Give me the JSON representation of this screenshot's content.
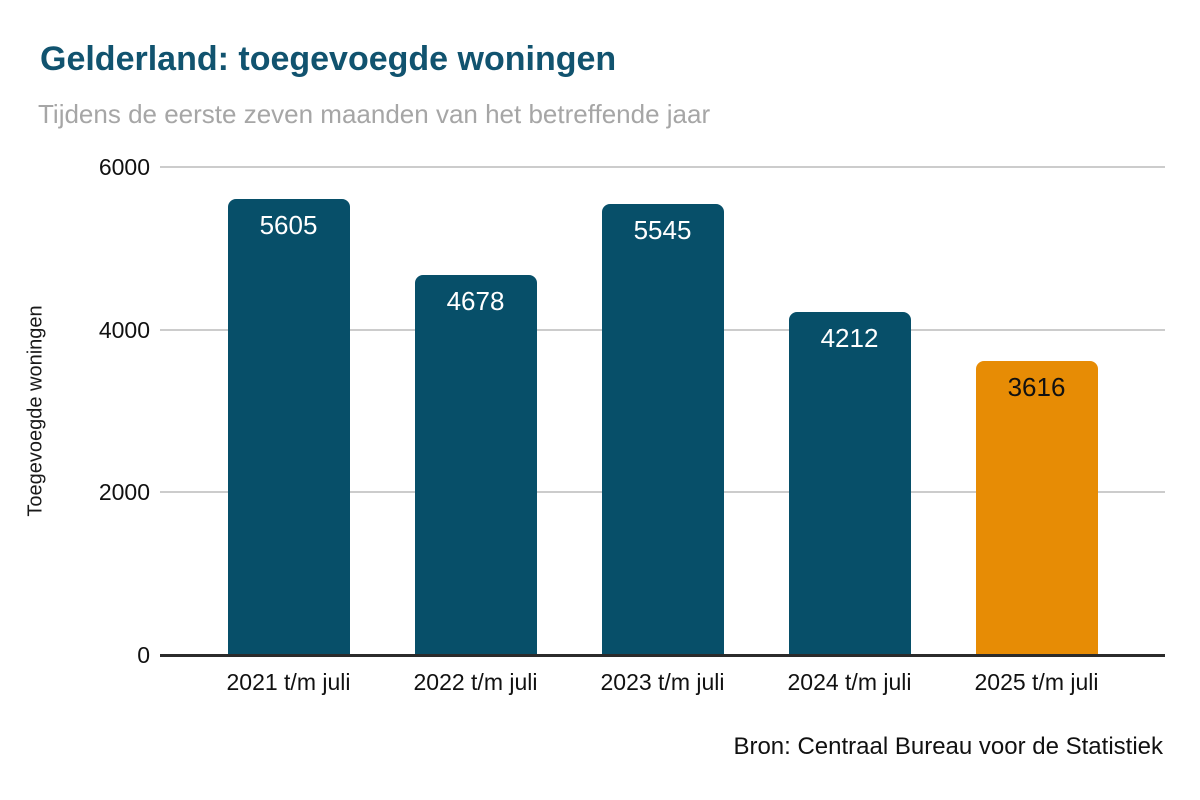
{
  "header": {
    "title": "Gelderland: toegevoegde woningen",
    "subtitle": "Tijdens de eerste zeven maanden van het betreffende jaar"
  },
  "source": "Bron: Centraal Bureau voor de Statistiek",
  "colors": {
    "title": "#11536f",
    "subtitle": "#a6a6a6",
    "bar_teal": "#074f69",
    "bar_orange": "#e78c05",
    "gridline": "#cccccc",
    "axis_line": "#2b2b2b"
  },
  "chart_data": {
    "type": "bar",
    "title": "Gelderland: toegevoegde woningen",
    "subtitle": "Tijdens de eerste zeven maanden van het betreffende jaar",
    "ylabel": "Toegevoegde woningen",
    "xlabel": "",
    "categories": [
      "2021 t/m juli",
      "2022 t/m juli",
      "2023 t/m juli",
      "2024 t/m juli",
      "2025 t/m juli"
    ],
    "values": [
      5605,
      4678,
      5545,
      4212,
      3616
    ],
    "bar_colors": [
      "#074f69",
      "#074f69",
      "#074f69",
      "#074f69",
      "#e78c05"
    ],
    "value_label_colors": [
      "#ffffff",
      "#ffffff",
      "#ffffff",
      "#ffffff",
      "#111111"
    ],
    "ylim": [
      0,
      6000
    ],
    "yticks": [
      0,
      2000,
      4000,
      6000
    ],
    "grid": "horizontal",
    "legend": "none",
    "source": "Bron: Centraal Bureau voor de Statistiek"
  }
}
